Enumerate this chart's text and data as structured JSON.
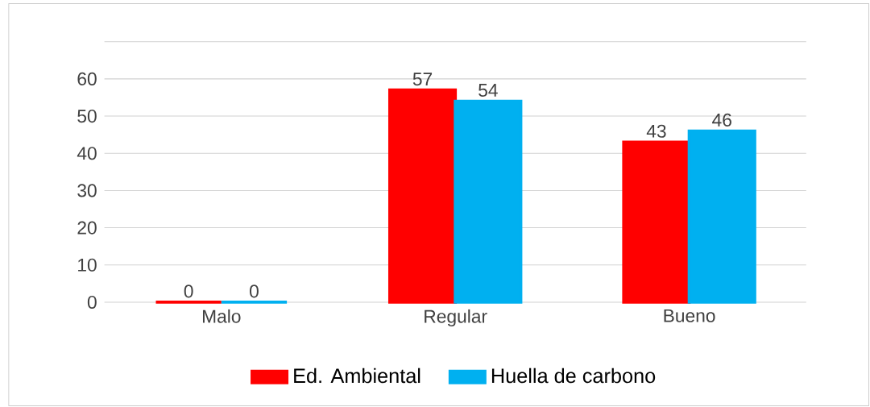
{
  "chart_data": {
    "type": "bar",
    "categories": [
      "Malo",
      "Regular",
      "Bueno"
    ],
    "series": [
      {
        "name": "Ed. Ambiental",
        "color": "#ff0000",
        "values": [
          0,
          57,
          43
        ]
      },
      {
        "name": "Huella de carbono",
        "color": "#00b0f0",
        "values": [
          0,
          54,
          46
        ]
      }
    ],
    "ylim": [
      0,
      70
    ],
    "yticks": [
      0,
      10,
      20,
      30,
      40,
      50,
      60,
      {
        "value": 70,
        "label": null
      }
    ],
    "grid": "y",
    "legend": "bottom",
    "data_labels": true
  }
}
